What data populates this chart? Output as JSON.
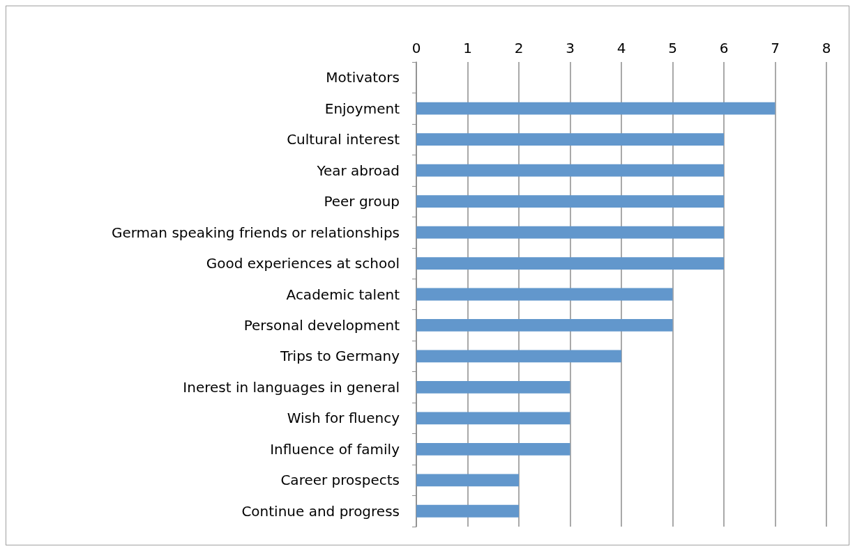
{
  "chart_data": {
    "type": "bar",
    "orientation": "horizontal",
    "categories": [
      "Motivators",
      "Enjoyment",
      "Cultural interest",
      "Year abroad",
      "Peer group",
      "German speaking friends or relationships",
      "Good experiences at school",
      "Academic talent",
      "Personal development",
      "Trips to Germany",
      "Inerest in languages in general",
      "Wish for fluency",
      "Influence of family",
      "Career prospects",
      "Continue and progress"
    ],
    "values": [
      null,
      7,
      6,
      6,
      6,
      6,
      6,
      5,
      5,
      4,
      3,
      3,
      3,
      2,
      2
    ],
    "color": "#6297cc",
    "xlim": [
      0,
      8
    ],
    "xticks": [
      0,
      1,
      2,
      3,
      4,
      5,
      6,
      7,
      8
    ],
    "grid": "x"
  }
}
